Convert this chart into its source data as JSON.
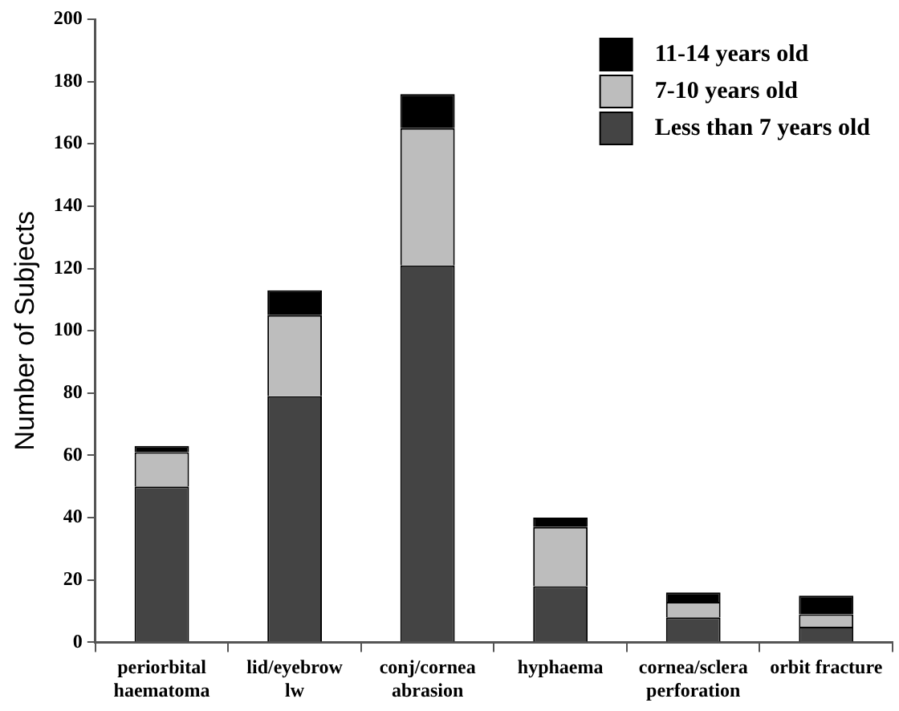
{
  "chart_data": {
    "type": "bar",
    "stacked": true,
    "ylabel": "Number of Subjects",
    "categories": [
      "periorbital\nhaematoma",
      "lid/eyebrow\nlw",
      "conj/cornea\nabrasion",
      "hyphaema",
      "cornea/sclera\nperforation",
      "orbit fracture"
    ],
    "series": [
      {
        "name": "Less than 7 years old",
        "color": "#444444",
        "values": [
          50,
          79,
          121,
          18,
          8,
          5
        ]
      },
      {
        "name": "7-10 years old",
        "color": "#bdbdbd",
        "values": [
          11,
          26,
          44,
          19,
          5,
          4
        ]
      },
      {
        "name": "11-14 years old",
        "color": "#000000",
        "values": [
          2,
          8,
          11,
          3,
          3,
          6
        ]
      }
    ],
    "ylim": [
      0,
      200
    ],
    "yticks": [
      0,
      20,
      40,
      60,
      80,
      100,
      120,
      140,
      160,
      180,
      200
    ],
    "grid": false,
    "legend": "top right"
  }
}
